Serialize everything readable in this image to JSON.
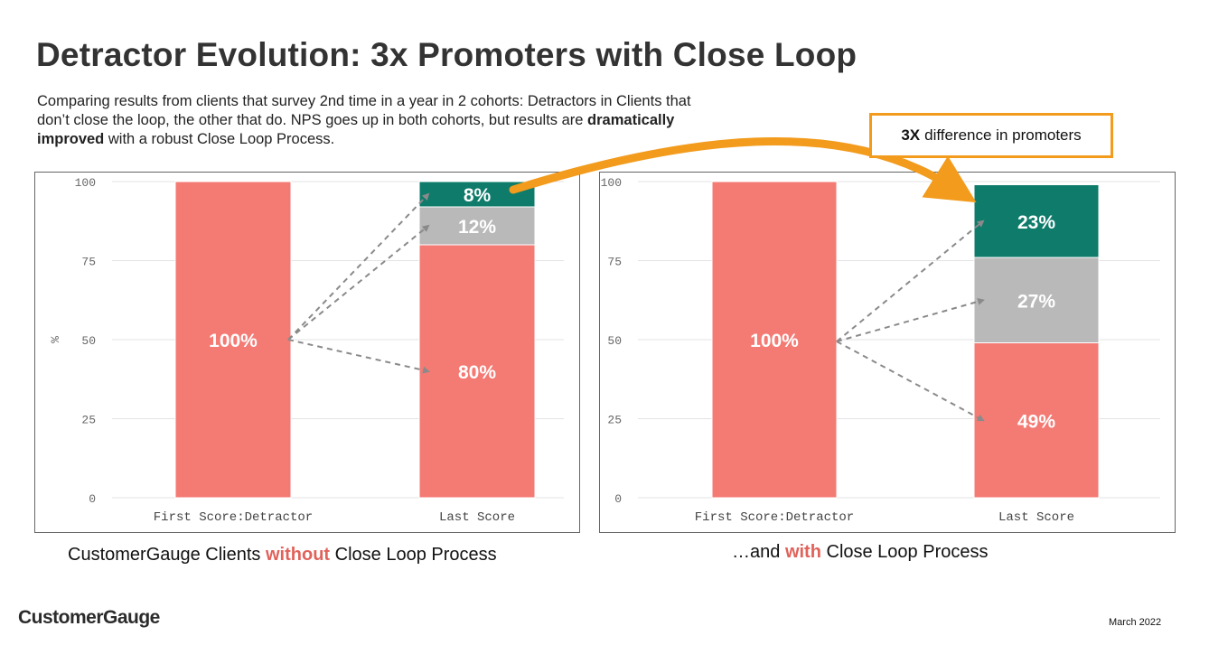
{
  "title": "Detractor Evolution: 3x Promoters with Close Loop",
  "subtitle": {
    "before": "Comparing results from clients that survey 2nd time in a year in 2 cohorts: Detractors in Clients that don’t close the loop, the other that do. NPS goes up in both cohorts, but results are ",
    "bold": "dramatically improved",
    "after": " with a robust Close Loop Process."
  },
  "callout": {
    "bold": "3X",
    "text": "difference in promoters"
  },
  "colors": {
    "detractor": "#f47a74",
    "passive": "#b9b9b9",
    "promoter": "#0e7b6b",
    "arrow": "#f29b1d",
    "callout_border": "#f29b1d",
    "accent_text": "#e0625a"
  },
  "chart_data": [
    {
      "type": "bar",
      "stacked": true,
      "categories": [
        "First Score:Detractor",
        "Last Score"
      ],
      "ylabel": "%",
      "ylim": [
        0,
        100
      ],
      "yticks": [
        0,
        25,
        50,
        75,
        100
      ],
      "grid": true,
      "series": [
        {
          "values": [
            100,
            80
          ],
          "labels": [
            "100%",
            "80%"
          ],
          "color": "#f47a74"
        },
        {
          "values": [
            0,
            12
          ],
          "labels": [
            "",
            "12%"
          ],
          "color": "#b9b9b9"
        },
        {
          "values": [
            0,
            8
          ],
          "labels": [
            "",
            "8%"
          ],
          "color": "#0e7b6b"
        }
      ]
    },
    {
      "type": "bar",
      "stacked": true,
      "categories": [
        "First Score:Detractor",
        "Last Score"
      ],
      "ylabel": "",
      "ylim": [
        0,
        100
      ],
      "yticks": [
        0,
        25,
        50,
        75,
        100
      ],
      "grid": true,
      "series": [
        {
          "values": [
            100,
            49
          ],
          "labels": [
            "100%",
            "49%"
          ],
          "color": "#f47a74"
        },
        {
          "values": [
            0,
            27
          ],
          "labels": [
            "",
            "27%"
          ],
          "color": "#b9b9b9"
        },
        {
          "values": [
            0,
            23
          ],
          "labels": [
            "",
            "23%"
          ],
          "color": "#0e7b6b"
        }
      ]
    }
  ],
  "captions": {
    "left": {
      "before": "CustomerGauge Clients ",
      "accent": "without",
      "after": " Close Loop Process"
    },
    "right": {
      "before": "…and ",
      "accent": "with",
      "after": " Close Loop Process"
    }
  },
  "footer": {
    "logo": "CustomerGauge",
    "date": "March 2022"
  }
}
